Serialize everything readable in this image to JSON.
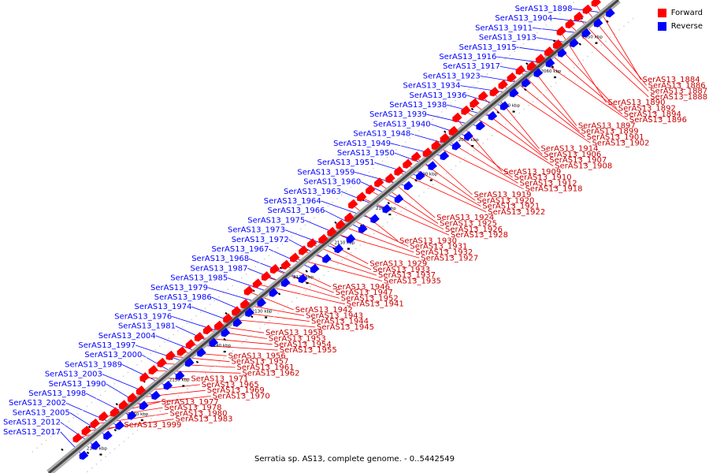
{
  "caption": "Serratia sp. AS13, complete genome. - 0..5442549",
  "legend": [
    {
      "label": "Forward",
      "color": "#ff0000"
    },
    {
      "label": "Reverse",
      "color": "#0000ff"
    }
  ],
  "colors": {
    "forward": "#ff0000",
    "reverse": "#0000ff",
    "backbone": "#444444"
  },
  "scale_ticks": [
    "2050 kbp",
    "2060 kbp",
    "2070 kbp",
    "2080 kbp",
    "2090 kbp",
    "2100 kbp",
    "2110 kbp",
    "2120 kbp",
    "2130 kbp",
    "2140 kbp",
    "2150 kbp",
    "2160 kbp",
    "2170 kbp"
  ],
  "reverse_labels": [
    "SerAS13_1898",
    "SerAS13_1904",
    "SerAS13_1911",
    "SerAS13_1913",
    "SerAS13_1915",
    "SerAS13_1916",
    "SerAS13_1917",
    "SerAS13_1923",
    "SerAS13_1934",
    "SerAS13_1936",
    "SerAS13_1938",
    "SerAS13_1939",
    "SerAS13_1940",
    "SerAS13_1948",
    "SerAS13_1949",
    "SerAS13_1950",
    "SerAS13_1951",
    "SerAS13_1959",
    "SerAS13_1960",
    "SerAS13_1963",
    "SerAS13_1964",
    "SerAS13_1966",
    "SerAS13_1975",
    "SerAS13_1973",
    "SerAS13_1972",
    "SerAS13_1967",
    "SerAS13_1968",
    "SerAS13_1987",
    "SerAS13_1985",
    "SerAS13_1979",
    "SerAS13_1986",
    "SerAS13_1974",
    "SerAS13_1976",
    "SerAS13_1981",
    "SerAS13_2004",
    "SerAS13_1997",
    "SerAS13_2000",
    "SerAS13_1989",
    "SerAS13_2003",
    "SerAS13_1990",
    "SerAS13_1998",
    "SerAS13_2002",
    "SerAS13_2005",
    "SerAS13_2012",
    "SerAS13_2017"
  ],
  "forward_labels": [
    "SerAS13_1884",
    "SerAS13_1886",
    "SerAS13_1887",
    "SerAS13_1888",
    "SerAS13_1890",
    "SerAS13_1892",
    "SerAS13_1894",
    "SerAS13_1896",
    "SerAS13_1897",
    "SerAS13_1899",
    "SerAS13_1901",
    "SerAS13_1902",
    "SerAS13_1914",
    "SerAS13_1906",
    "SerAS13_1907",
    "SerAS13_1908",
    "SerAS13_1909",
    "SerAS13_1910",
    "SerAS13_1912",
    "SerAS13_1918",
    "SerAS13_1919",
    "SerAS13_1920",
    "SerAS13_1921",
    "SerAS13_1922",
    "SerAS13_1924",
    "SerAS13_1925",
    "SerAS13_1926",
    "SerAS13_1928",
    "SerAS13_1930",
    "SerAS13_1931",
    "SerAS13_1932",
    "SerAS13_1927",
    "SerAS13_1929",
    "SerAS13_1933",
    "SerAS13_1937",
    "SerAS13_1935",
    "SerAS13_1946",
    "SerAS13_1947",
    "SerAS13_1952",
    "SerAS13_1941",
    "SerAS13_1942",
    "SerAS13_1943",
    "SerAS13_1944",
    "SerAS13_1945",
    "SerAS13_1958",
    "SerAS13_1953",
    "SerAS13_1954",
    "SerAS13_1955",
    "SerAS13_1956",
    "SerAS13_1957",
    "SerAS13_1961",
    "SerAS13_1962",
    "SerAS13_1971",
    "SerAS13_1965",
    "SerAS13_1969",
    "SerAS13_1970",
    "SerAS13_1977",
    "SerAS13_1978",
    "SerAS13_1980",
    "SerAS13_1983",
    "SerAS13_1999"
  ]
}
